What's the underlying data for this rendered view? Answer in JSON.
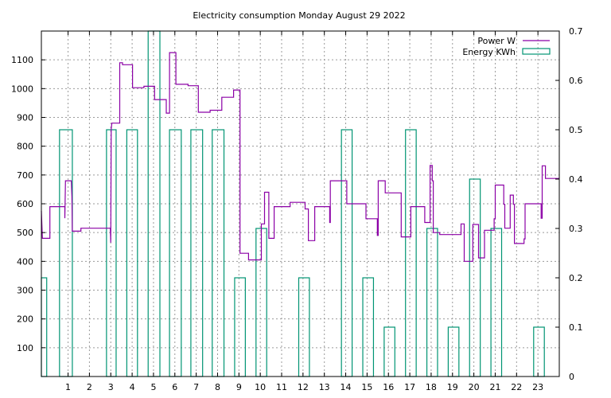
{
  "chart_data": {
    "type": "line",
    "title": "Electricity consumption Monday August 29 2022",
    "xlabel": "",
    "ylabel": "",
    "y2label": "",
    "x_range": [
      -0.25,
      24.0
    ],
    "y_range": [
      0,
      1200
    ],
    "y2_range": [
      0,
      0.7
    ],
    "x_ticks": [
      1,
      2,
      3,
      4,
      5,
      6,
      7,
      8,
      9,
      10,
      11,
      12,
      13,
      14,
      15,
      16,
      17,
      18,
      19,
      20,
      21,
      22,
      23
    ],
    "y_ticks": [
      100,
      200,
      300,
      400,
      500,
      600,
      700,
      800,
      900,
      1000,
      1100
    ],
    "y2_ticks": [
      0,
      0.1,
      0.2,
      0.3,
      0.4,
      0.5,
      0.6,
      0.7
    ],
    "grid": true,
    "legend_position": "top-right",
    "series": [
      {
        "name": "Power W",
        "style": "steps",
        "axis": "y",
        "color": "#8b00a6",
        "points": [
          [
            -0.25,
            575
          ],
          [
            -0.2,
            480
          ],
          [
            0.15,
            480
          ],
          [
            0.15,
            590
          ],
          [
            0.85,
            590
          ],
          [
            0.85,
            550
          ],
          [
            0.88,
            680
          ],
          [
            1.15,
            680
          ],
          [
            1.18,
            625
          ],
          [
            1.2,
            505
          ],
          [
            1.6,
            505
          ],
          [
            1.6,
            515
          ],
          [
            2.6,
            515
          ],
          [
            2.98,
            515
          ],
          [
            3.0,
            465
          ],
          [
            3.02,
            860
          ],
          [
            3.05,
            880
          ],
          [
            3.42,
            880
          ],
          [
            3.42,
            1090
          ],
          [
            3.55,
            1090
          ],
          [
            3.55,
            1083
          ],
          [
            4.02,
            1083
          ],
          [
            4.02,
            1003
          ],
          [
            4.55,
            1003
          ],
          [
            4.55,
            1008
          ],
          [
            5.05,
            1008
          ],
          [
            5.05,
            962
          ],
          [
            5.6,
            962
          ],
          [
            5.6,
            915
          ],
          [
            5.75,
            915
          ],
          [
            5.75,
            1125
          ],
          [
            6.05,
            1125
          ],
          [
            6.05,
            1015
          ],
          [
            6.62,
            1015
          ],
          [
            6.62,
            1010
          ],
          [
            7.1,
            1010
          ],
          [
            7.1,
            918
          ],
          [
            7.65,
            918
          ],
          [
            7.65,
            925
          ],
          [
            8.2,
            925
          ],
          [
            8.2,
            970
          ],
          [
            8.75,
            970
          ],
          [
            8.75,
            995
          ],
          [
            9.05,
            995
          ],
          [
            9.05,
            428
          ],
          [
            9.45,
            428
          ],
          [
            9.45,
            405
          ],
          [
            10.05,
            405
          ],
          [
            10.05,
            530
          ],
          [
            10.2,
            530
          ],
          [
            10.2,
            640
          ],
          [
            10.4,
            640
          ],
          [
            10.4,
            480
          ],
          [
            10.65,
            480
          ],
          [
            10.65,
            590
          ],
          [
            11.4,
            590
          ],
          [
            11.4,
            605
          ],
          [
            12.1,
            605
          ],
          [
            12.1,
            582
          ],
          [
            12.25,
            582
          ],
          [
            12.25,
            472
          ],
          [
            12.55,
            472
          ],
          [
            12.55,
            590
          ],
          [
            13.25,
            590
          ],
          [
            13.25,
            535
          ],
          [
            13.28,
            535
          ],
          [
            13.28,
            680
          ],
          [
            14.05,
            680
          ],
          [
            14.05,
            600
          ],
          [
            14.95,
            600
          ],
          [
            14.95,
            548
          ],
          [
            15.48,
            548
          ],
          [
            15.48,
            490
          ],
          [
            15.52,
            490
          ],
          [
            15.52,
            680
          ],
          [
            15.85,
            680
          ],
          [
            15.85,
            638
          ],
          [
            16.6,
            638
          ],
          [
            16.6,
            485
          ],
          [
            17.05,
            485
          ],
          [
            17.05,
            590
          ],
          [
            17.7,
            590
          ],
          [
            17.7,
            535
          ],
          [
            17.95,
            535
          ],
          [
            17.95,
            733
          ],
          [
            18.05,
            733
          ],
          [
            18.05,
            680
          ],
          [
            18.1,
            680
          ],
          [
            18.1,
            500
          ],
          [
            18.4,
            500
          ],
          [
            18.4,
            493
          ],
          [
            19.4,
            493
          ],
          [
            19.4,
            530
          ],
          [
            19.55,
            530
          ],
          [
            19.55,
            400
          ],
          [
            19.95,
            400
          ],
          [
            19.95,
            528
          ],
          [
            20.22,
            528
          ],
          [
            20.22,
            412
          ],
          [
            20.5,
            412
          ],
          [
            20.5,
            508
          ],
          [
            20.95,
            508
          ],
          [
            20.95,
            548
          ],
          [
            21.0,
            548
          ],
          [
            21.0,
            665
          ],
          [
            21.4,
            665
          ],
          [
            21.4,
            598
          ],
          [
            21.45,
            598
          ],
          [
            21.45,
            515
          ],
          [
            21.7,
            515
          ],
          [
            21.7,
            630
          ],
          [
            21.85,
            630
          ],
          [
            21.85,
            598
          ],
          [
            21.9,
            598
          ],
          [
            21.9,
            462
          ],
          [
            22.35,
            462
          ],
          [
            22.35,
            478
          ],
          [
            22.4,
            478
          ],
          [
            22.4,
            600
          ],
          [
            23.15,
            600
          ],
          [
            23.15,
            550
          ],
          [
            23.2,
            550
          ],
          [
            23.2,
            732
          ],
          [
            23.35,
            732
          ],
          [
            23.35,
            688
          ],
          [
            24.0,
            688
          ]
        ]
      },
      {
        "name": "Energy KWh",
        "style": "boxes",
        "axis": "y2",
        "color": "#009473",
        "bars": [
          [
            -0.25,
            0.0,
            0.2
          ],
          [
            0.6,
            1.2,
            0.5
          ],
          [
            2.8,
            3.25,
            0.5
          ],
          [
            3.75,
            4.25,
            0.5
          ],
          [
            4.75,
            5.3,
            0.7
          ],
          [
            5.75,
            6.3,
            0.5
          ],
          [
            6.75,
            7.3,
            0.5
          ],
          [
            7.75,
            8.3,
            0.5
          ],
          [
            8.8,
            9.3,
            0.2
          ],
          [
            9.8,
            10.3,
            0.3
          ],
          [
            11.8,
            12.3,
            0.2
          ],
          [
            13.8,
            14.3,
            0.5
          ],
          [
            14.8,
            15.3,
            0.2
          ],
          [
            15.8,
            16.3,
            0.1
          ],
          [
            16.8,
            17.3,
            0.5
          ],
          [
            17.8,
            18.3,
            0.3
          ],
          [
            18.8,
            19.3,
            0.1
          ],
          [
            19.8,
            20.3,
            0.4
          ],
          [
            20.8,
            21.3,
            0.3
          ],
          [
            22.8,
            23.3,
            0.1
          ]
        ]
      }
    ]
  }
}
